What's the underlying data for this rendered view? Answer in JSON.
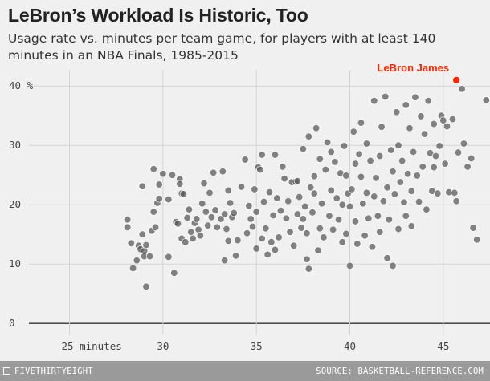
{
  "header": {
    "title": "LeBron’s Workload Is Historic, Too",
    "subtitle": "Usage rate vs. minutes per team game, for players with at least 140 minutes in an NBA Finals, 1985-2015"
  },
  "footer": {
    "brand": "FIVETHIRTYEIGHT",
    "source": "SOURCE: BASKETBALL-REFERENCE.COM"
  },
  "colors": {
    "background": "#f0f0f0",
    "points": "#555555",
    "highlight": "#ff2700",
    "grid": "#d4d4d4",
    "footer": "#9a9a9a"
  },
  "chart_data": {
    "type": "scatter",
    "title": "LeBron’s Workload Is Historic, Too",
    "subtitle": "Usage rate vs. minutes per team game, for players with at least 140 minutes in an NBA Finals, 1985-2015",
    "xlim": [
      23,
      47.5
    ],
    "ylim": [
      -2,
      43
    ],
    "x_ticks": [
      25,
      30,
      35,
      40,
      45
    ],
    "x_tick_labels": [
      "25 minutes",
      "30",
      "35",
      "40",
      "45"
    ],
    "y_ticks": [
      0,
      10,
      20,
      30,
      40
    ],
    "y_tick_labels": [
      "0",
      "10",
      "20",
      "30",
      "40 %"
    ],
    "grid": true,
    "highlight": {
      "label": "LeBron James",
      "x": 45.7,
      "y": 41
    },
    "series": [
      {
        "points": [
          [
            28.1,
            17.5
          ],
          [
            28.1,
            16.2
          ],
          [
            28.3,
            13.5
          ],
          [
            28.4,
            9.3
          ],
          [
            28.6,
            10.6
          ],
          [
            28.7,
            13.1
          ],
          [
            28.8,
            12.5
          ],
          [
            28.9,
            15
          ],
          [
            28.9,
            23.1
          ],
          [
            29,
            12.2
          ],
          [
            29,
            11.3
          ],
          [
            29.1,
            6.2
          ],
          [
            29.1,
            13.2
          ],
          [
            29.3,
            11.3
          ],
          [
            29.4,
            15.6
          ],
          [
            29.5,
            26
          ],
          [
            29.5,
            18.8
          ],
          [
            29.6,
            16.2
          ],
          [
            29.7,
            20.3
          ],
          [
            29.8,
            23.4
          ],
          [
            29.8,
            21
          ],
          [
            30,
            25.2
          ],
          [
            30.3,
            20.9
          ],
          [
            30.3,
            11.2
          ],
          [
            30.5,
            25
          ],
          [
            30.6,
            8.5
          ],
          [
            30.7,
            17.1
          ],
          [
            30.8,
            16.8
          ],
          [
            30.9,
            24.3
          ],
          [
            30.9,
            23.5
          ],
          [
            31,
            14.3
          ],
          [
            31,
            21.9
          ],
          [
            31.1,
            21.8
          ],
          [
            31.2,
            13.7
          ],
          [
            31.3,
            17.8
          ],
          [
            31.4,
            19.2
          ],
          [
            31.5,
            15.4
          ],
          [
            31.6,
            14.3
          ],
          [
            31.7,
            16.9
          ],
          [
            31.8,
            17.6
          ],
          [
            31.9,
            15.8
          ],
          [
            32,
            14.8
          ],
          [
            32.1,
            20.2
          ],
          [
            32.2,
            23.6
          ],
          [
            32.3,
            18.8
          ],
          [
            32.4,
            16.5
          ],
          [
            32.5,
            22
          ],
          [
            32.6,
            17.9
          ],
          [
            32.7,
            25.4
          ],
          [
            32.8,
            19.1
          ],
          [
            32.9,
            16.2
          ],
          [
            33.1,
            17.6
          ],
          [
            33.2,
            25.6
          ],
          [
            33.3,
            18.4
          ],
          [
            33.3,
            10.6
          ],
          [
            33.4,
            15.9
          ],
          [
            33.5,
            22.4
          ],
          [
            33.5,
            13.9
          ],
          [
            33.6,
            20.3
          ],
          [
            33.7,
            17.9
          ],
          [
            33.8,
            18.6
          ],
          [
            33.9,
            11.4
          ],
          [
            34,
            14
          ],
          [
            34.2,
            23
          ],
          [
            34.4,
            27.6
          ],
          [
            34.5,
            15.2
          ],
          [
            34.6,
            19.8
          ],
          [
            34.7,
            17.6
          ],
          [
            34.8,
            16.3
          ],
          [
            34.9,
            22.6
          ],
          [
            35,
            12.6
          ],
          [
            35,
            18.8
          ],
          [
            35.1,
            26.3
          ],
          [
            35.2,
            25.9
          ],
          [
            35.3,
            14.3
          ],
          [
            35.3,
            28.4
          ],
          [
            35.4,
            20.5
          ],
          [
            35.5,
            16
          ],
          [
            35.6,
            11.6
          ],
          [
            35.7,
            22.1
          ],
          [
            35.8,
            13.7
          ],
          [
            35.9,
            18.2
          ],
          [
            36,
            28.4
          ],
          [
            36,
            12.4
          ],
          [
            36.1,
            21.1
          ],
          [
            36.2,
            14.5
          ],
          [
            36.3,
            19
          ],
          [
            36.4,
            26.4
          ],
          [
            36.5,
            24.4
          ],
          [
            36.6,
            17.7
          ],
          [
            36.7,
            20.6
          ],
          [
            36.8,
            15.4
          ],
          [
            36.9,
            23.8
          ],
          [
            37,
            13.1
          ],
          [
            37.1,
            23.9
          ],
          [
            37.2,
            18.4
          ],
          [
            37.2,
            24
          ],
          [
            37.3,
            21.3
          ],
          [
            37.4,
            16.1
          ],
          [
            37.5,
            29.4
          ],
          [
            37.5,
            17.6
          ],
          [
            37.6,
            19.7
          ],
          [
            37.7,
            10.8
          ],
          [
            37.7,
            15.2
          ],
          [
            37.8,
            9.2
          ],
          [
            37.8,
            31.5
          ],
          [
            37.9,
            22.9
          ],
          [
            38,
            18.7
          ],
          [
            38.1,
            24.8
          ],
          [
            38.1,
            21.9
          ],
          [
            38.2,
            32.9
          ],
          [
            38.3,
            12.3
          ],
          [
            38.4,
            27.7
          ],
          [
            38.4,
            16
          ],
          [
            38.5,
            20.2
          ],
          [
            38.6,
            14.5
          ],
          [
            38.7,
            25.9
          ],
          [
            38.8,
            30.5
          ],
          [
            38.9,
            18.1
          ],
          [
            39,
            28.9
          ],
          [
            39,
            22.4
          ],
          [
            39.1,
            15.8
          ],
          [
            39.2,
            27.2
          ],
          [
            39.3,
            21.1
          ],
          [
            39.4,
            17.5
          ],
          [
            39.5,
            25.3
          ],
          [
            39.6,
            20
          ],
          [
            39.6,
            13.7
          ],
          [
            39.7,
            29.9
          ],
          [
            39.8,
            24.9
          ],
          [
            39.8,
            15.1
          ],
          [
            39.9,
            21.9
          ],
          [
            40,
            19.7
          ],
          [
            40,
            9.7
          ],
          [
            40.1,
            22.6
          ],
          [
            40.2,
            32.3
          ],
          [
            40.3,
            17.2
          ],
          [
            40.3,
            26.9
          ],
          [
            40.4,
            13.4
          ],
          [
            40.5,
            28.5
          ],
          [
            40.6,
            33.8
          ],
          [
            40.6,
            24.7
          ],
          [
            40.7,
            20.2
          ],
          [
            40.8,
            14.8
          ],
          [
            40.9,
            22
          ],
          [
            40.9,
            30.3
          ],
          [
            41,
            17.7
          ],
          [
            41.1,
            27.4
          ],
          [
            41.2,
            12.9
          ],
          [
            41.3,
            37.5
          ],
          [
            41.3,
            21.4
          ],
          [
            41.4,
            24.5
          ],
          [
            41.5,
            18.1
          ],
          [
            41.6,
            28.2
          ],
          [
            41.6,
            15.4
          ],
          [
            41.7,
            33.1
          ],
          [
            41.8,
            20.6
          ],
          [
            41.9,
            38.2
          ],
          [
            42,
            22.9
          ],
          [
            42,
            11
          ],
          [
            42.1,
            17.5
          ],
          [
            42.2,
            29.2
          ],
          [
            42.3,
            9.7
          ],
          [
            42.3,
            25.6
          ],
          [
            42.4,
            21.8
          ],
          [
            42.5,
            35.6
          ],
          [
            42.6,
            30
          ],
          [
            42.6,
            15.9
          ],
          [
            42.7,
            23.8
          ],
          [
            42.8,
            27.4
          ],
          [
            42.9,
            20.4
          ],
          [
            43,
            36.8
          ],
          [
            43,
            18.1
          ],
          [
            43.1,
            25.2
          ],
          [
            43.2,
            32.9
          ],
          [
            43.3,
            22.3
          ],
          [
            43.3,
            16.4
          ],
          [
            43.4,
            28.9
          ],
          [
            43.5,
            38.1
          ],
          [
            43.6,
            24.9
          ],
          [
            43.7,
            20.5
          ],
          [
            43.8,
            34.9
          ],
          [
            43.9,
            26.4
          ],
          [
            44,
            31.9
          ],
          [
            44.1,
            19.2
          ],
          [
            44.2,
            37.5
          ],
          [
            44.3,
            28.7
          ],
          [
            44.4,
            22.3
          ],
          [
            44.5,
            26.3
          ],
          [
            44.5,
            33.6
          ],
          [
            44.6,
            28.2
          ],
          [
            44.7,
            21.9
          ],
          [
            44.8,
            29.9
          ],
          [
            44.9,
            35
          ],
          [
            45,
            34.2
          ],
          [
            45.1,
            26.9
          ],
          [
            45.2,
            33.2
          ],
          [
            45.3,
            22.1
          ],
          [
            45.5,
            34.4
          ],
          [
            45.6,
            22
          ],
          [
            45.7,
            20.6
          ],
          [
            45.8,
            28.8
          ],
          [
            46,
            39.5
          ],
          [
            46.1,
            30.3
          ],
          [
            46.3,
            26.4
          ],
          [
            46.5,
            27.8
          ],
          [
            46.6,
            16.1
          ],
          [
            46.8,
            14.1
          ],
          [
            47.3,
            37.6
          ]
        ]
      }
    ]
  }
}
